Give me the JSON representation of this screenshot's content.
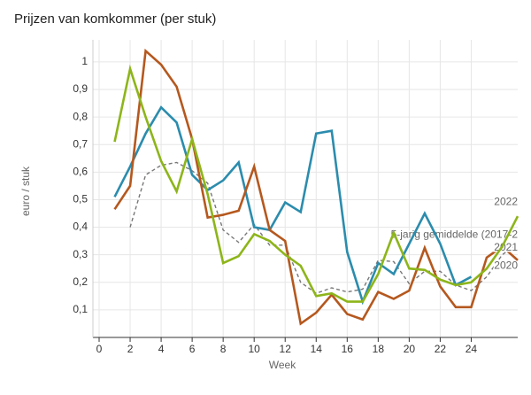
{
  "chart_data": {
    "type": "line",
    "title": "Prijzen van komkommer (per stuk)",
    "x_label": "Week",
    "y_label": "euro / stuk",
    "x": [
      1,
      2,
      3,
      4,
      5,
      6,
      7,
      8,
      9,
      10,
      11,
      12,
      13,
      14,
      15,
      16,
      17,
      18,
      19,
      20,
      21,
      22,
      23,
      24,
      25,
      26,
      27
    ],
    "xlim": [
      -0.4,
      27
    ],
    "xticks": [
      0,
      2,
      4,
      6,
      8,
      10,
      12,
      14,
      16,
      18,
      20,
      22,
      24
    ],
    "ylim": [
      0,
      1.08
    ],
    "yticks": [
      {
        "value": 0.1,
        "label": "0,1"
      },
      {
        "value": 0.2,
        "label": "0,2"
      },
      {
        "value": 0.3,
        "label": "0,3"
      },
      {
        "value": 0.4,
        "label": "0,4"
      },
      {
        "value": 0.5,
        "label": "0,5"
      },
      {
        "value": 0.6,
        "label": "0,6"
      },
      {
        "value": 0.7,
        "label": "0,7"
      },
      {
        "value": 0.8,
        "label": "0,8"
      },
      {
        "value": 0.9,
        "label": "0,9"
      },
      {
        "value": 1,
        "label": "1"
      }
    ],
    "grid": true,
    "series": [
      {
        "name": "5-jarig gemiddelde (2017-2",
        "color": "#777777",
        "dashed": true,
        "values": [
          null,
          0.4,
          0.59,
          0.625,
          0.635,
          0.605,
          0.56,
          0.39,
          0.345,
          0.41,
          0.335,
          0.335,
          0.2,
          0.16,
          0.18,
          0.165,
          0.175,
          0.28,
          0.275,
          0.195,
          0.24,
          0.24,
          0.19,
          0.17,
          0.22,
          0.3,
          0.34
        ]
      },
      {
        "name": "2020",
        "color": "#2b8cad",
        "values": [
          0.51,
          0.62,
          0.74,
          0.835,
          0.78,
          0.59,
          0.535,
          0.57,
          0.635,
          0.4,
          0.39,
          0.49,
          0.455,
          0.74,
          0.75,
          0.31,
          0.13,
          0.27,
          0.23,
          0.34,
          0.45,
          0.34,
          0.19,
          0.22,
          null,
          null,
          null
        ]
      },
      {
        "name": "2021",
        "color": "#b5581e",
        "values": [
          0.465,
          0.55,
          1.04,
          0.99,
          0.91,
          0.72,
          0.435,
          0.445,
          0.46,
          0.62,
          0.39,
          0.35,
          0.05,
          0.09,
          0.155,
          0.085,
          0.065,
          0.165,
          0.14,
          0.17,
          0.325,
          0.185,
          0.11,
          0.11,
          0.29,
          0.33,
          0.28
        ]
      },
      {
        "name": "2022",
        "color": "#8db51a",
        "values": [
          0.71,
          0.975,
          0.8,
          0.64,
          0.53,
          0.72,
          0.52,
          0.27,
          0.295,
          0.375,
          0.35,
          0.3,
          0.26,
          0.15,
          0.16,
          0.13,
          0.13,
          0.23,
          0.38,
          0.25,
          0.245,
          0.21,
          0.19,
          0.2,
          0.25,
          0.33,
          0.44
        ]
      }
    ]
  }
}
